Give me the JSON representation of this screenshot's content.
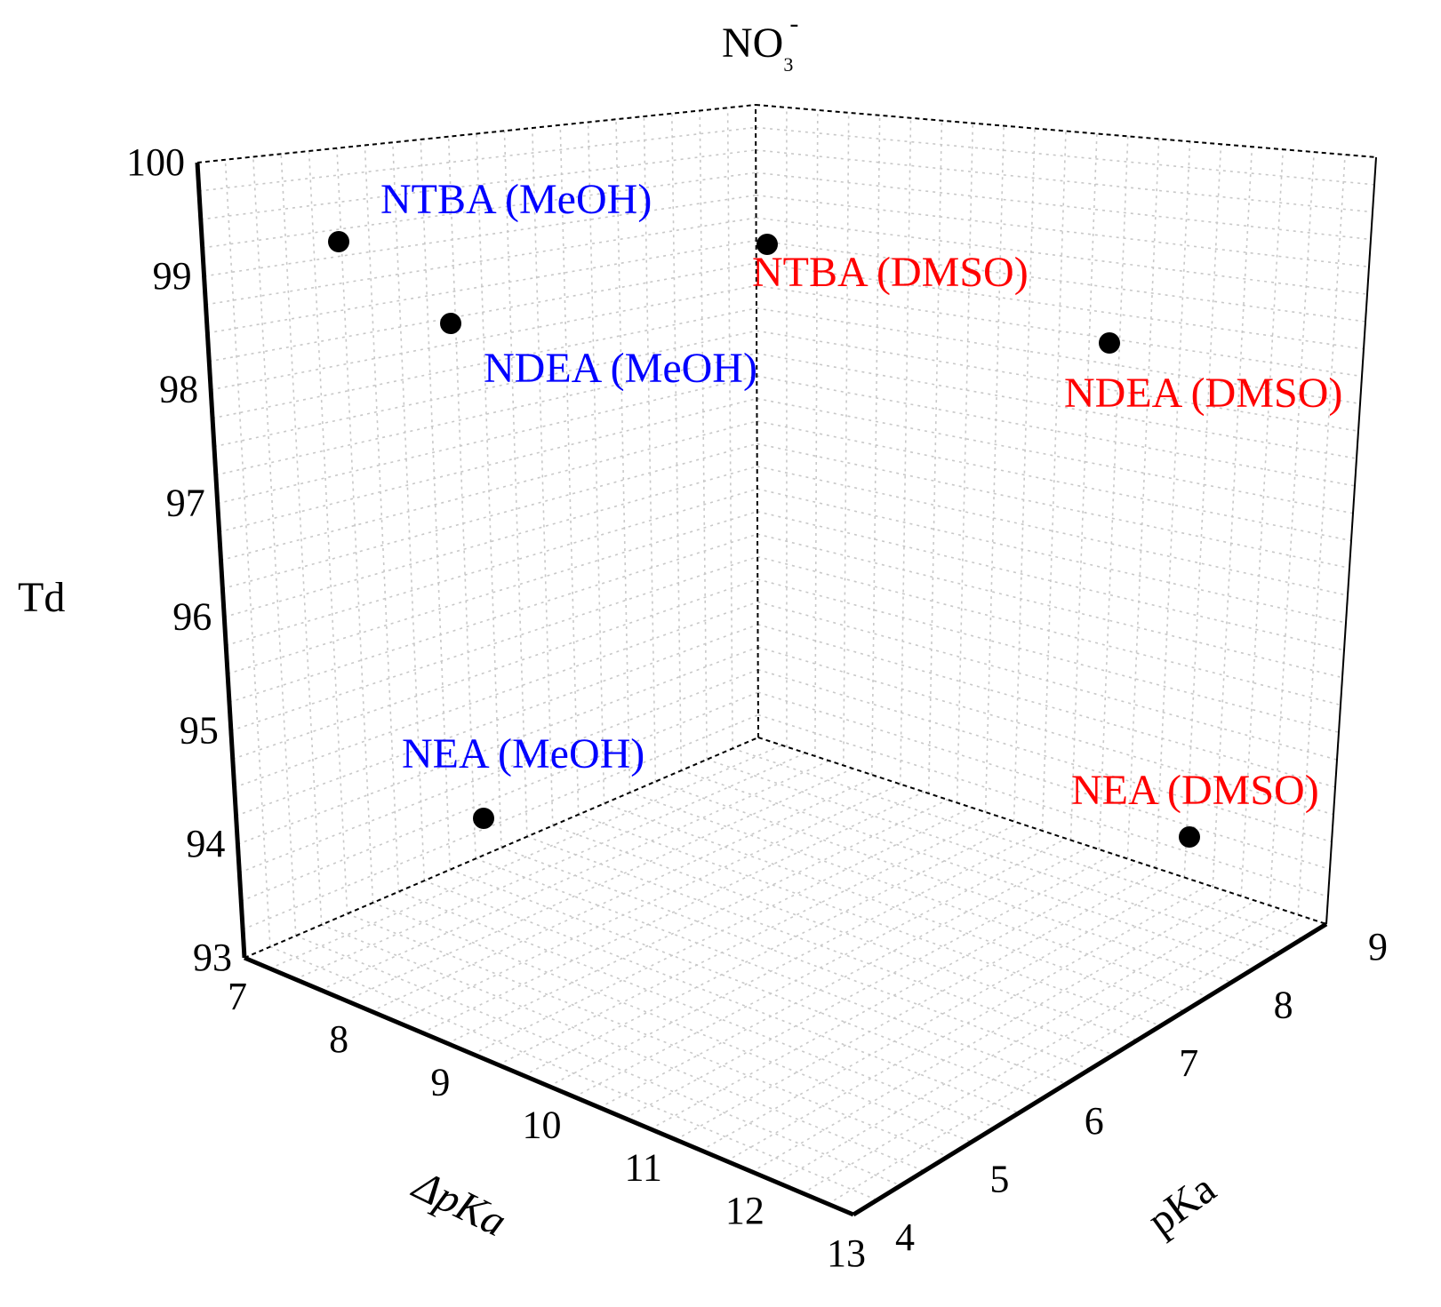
{
  "chart_data": {
    "type": "scatter",
    "title": "NO",
    "title_sub": "3",
    "title_sup": "-",
    "axes": {
      "x": {
        "label": "ΔpKa",
        "range": [
          7,
          13
        ],
        "ticks": [
          "7",
          "8",
          "9",
          "10",
          "11",
          "12",
          "13"
        ]
      },
      "y": {
        "label": "pKa",
        "range": [
          4,
          9
        ],
        "ticks": [
          "4",
          "5",
          "6",
          "7",
          "8",
          "9"
        ]
      },
      "z": {
        "label": "Td",
        "range": [
          93,
          100
        ],
        "ticks": [
          "93",
          "94",
          "95",
          "96",
          "97",
          "98",
          "99",
          "100"
        ]
      }
    },
    "grid": true,
    "points": [
      {
        "name": "NTBA (MeOH)",
        "x": 7.2,
        "y": 8.2,
        "z": 99.4,
        "label_color": "#0000ff"
      },
      {
        "name": "NDEA (MeOH)",
        "x": 8.6,
        "y": 8.3,
        "z": 98.8,
        "label_color": "#0000ff"
      },
      {
        "name": "NEA (MeOH)",
        "x": 10.6,
        "y": 8.5,
        "z": 94.3,
        "label_color": "#0000ff"
      },
      {
        "name": "NTBA (DMSO)",
        "x": 7.0,
        "y": 8.9,
        "z": 99.4,
        "label_color": "#ff0000"
      },
      {
        "name": "NDEA (DMSO)",
        "x": 9.6,
        "y": 8.9,
        "z": 98.7,
        "label_color": "#ff0000"
      },
      {
        "name": "NEA (DMSO)",
        "x": 12.5,
        "y": 8.9,
        "z": 94.3,
        "label_color": "#ff0000"
      }
    ]
  }
}
